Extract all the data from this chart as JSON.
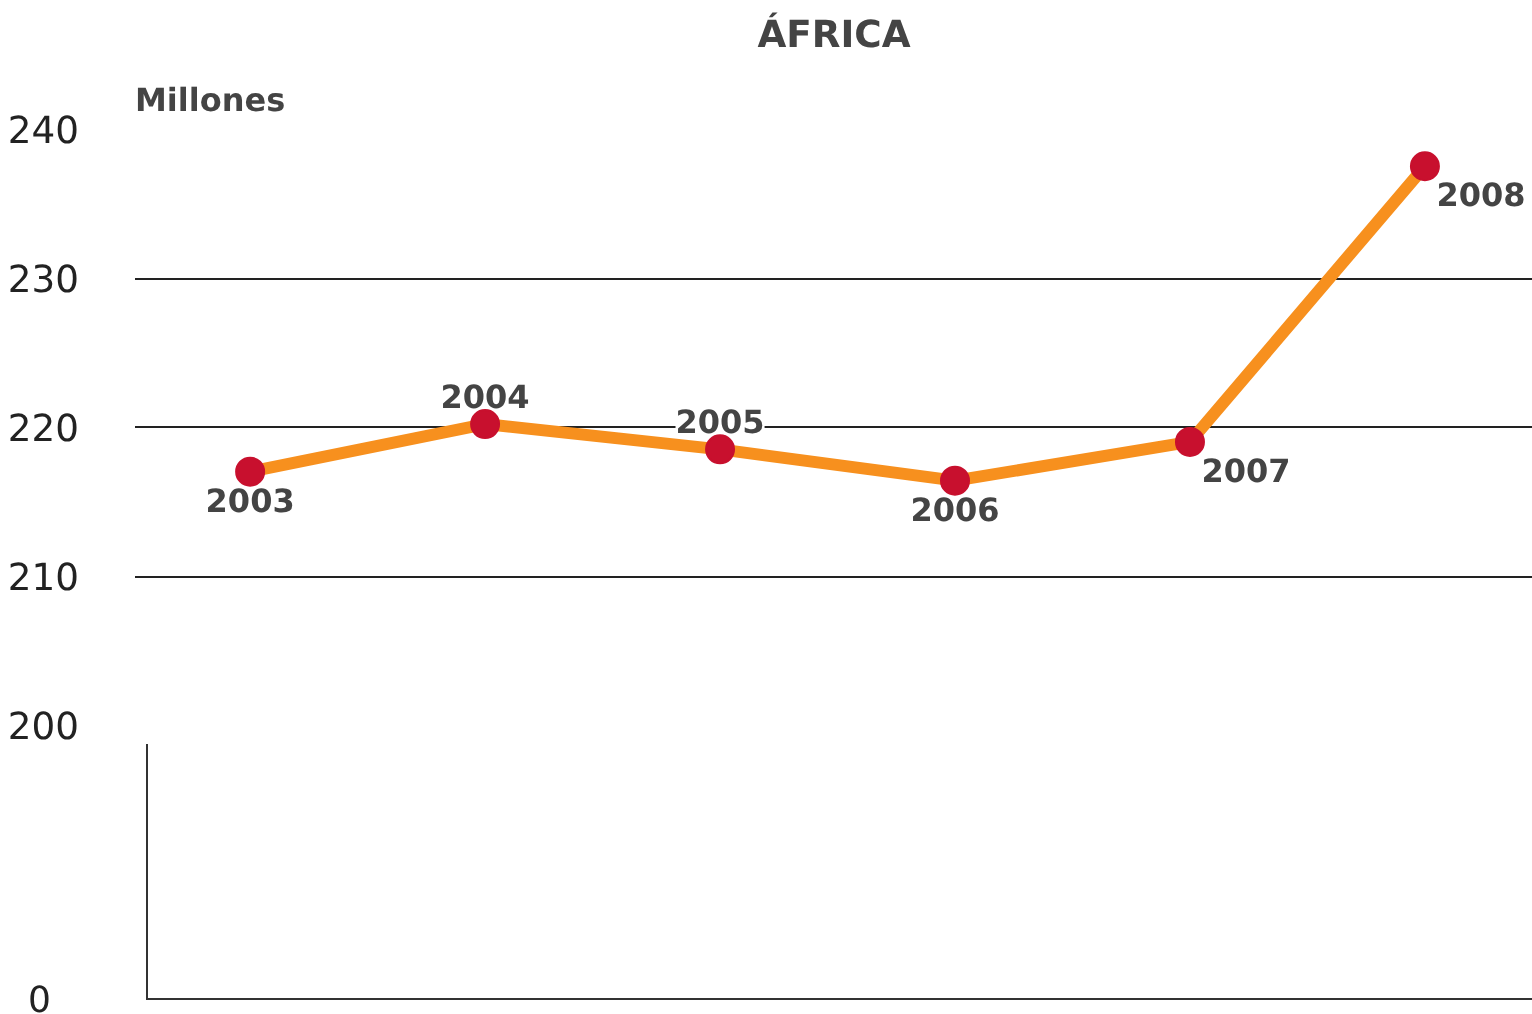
{
  "chart_data": [
    {
      "type": "line",
      "title": "ÁFRICA",
      "ylabel": "Millones",
      "categories": [
        null,
        null,
        null,
        null,
        null,
        null
      ],
      "series": [
        {
          "color": "#f7901e",
          "colors": [
            "#c8102e",
            "#c8102e",
            "#c8102e",
            "#c8102e",
            "#c8102e",
            "#c8102e"
          ],
          "values": [
            217,
            220.2,
            218.5,
            216.4,
            219,
            237.5
          ]
        }
      ],
      "annotations": [
        "2003",
        "2004",
        "2005",
        "2006",
        "2007",
        "2008"
      ],
      "ylim": [
        200,
        240
      ],
      "yticks": [
        200,
        210,
        220,
        230,
        240
      ],
      "grid": "y",
      "tick_labels": "y",
      "marker": "circle",
      "line_style": "solid"
    },
    {
      "type": "other",
      "annotations": [
        "0"
      ]
    }
  ]
}
